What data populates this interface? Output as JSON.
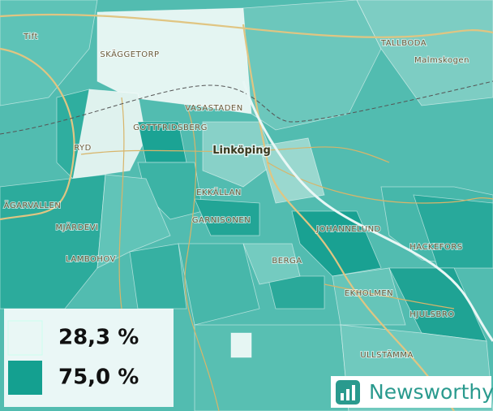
{
  "map": {
    "labels": [
      "Tift",
      "SKÄGGETORP",
      "TALLBODA",
      "Malmskogen",
      "VASASTADEN",
      "GOTTFRIDSBERG",
      "RYD",
      "Linköping",
      "EKKÄLLAN",
      "GARNISONEN",
      "JOHANNELUND",
      "ÄGARVALLEN",
      "MJÄRDEVI",
      "LAMBOHOV",
      "HACKEFORS",
      "BERGA",
      "EKHOLMEN",
      "HJULSBRO",
      "ULLSTÄMMA"
    ],
    "legend": [
      {
        "label": "28,3 %",
        "color": "#e9f7f5"
      },
      {
        "label": "75,0 %",
        "color": "#14a090"
      }
    ]
  },
  "brand": "Newsworthy"
}
